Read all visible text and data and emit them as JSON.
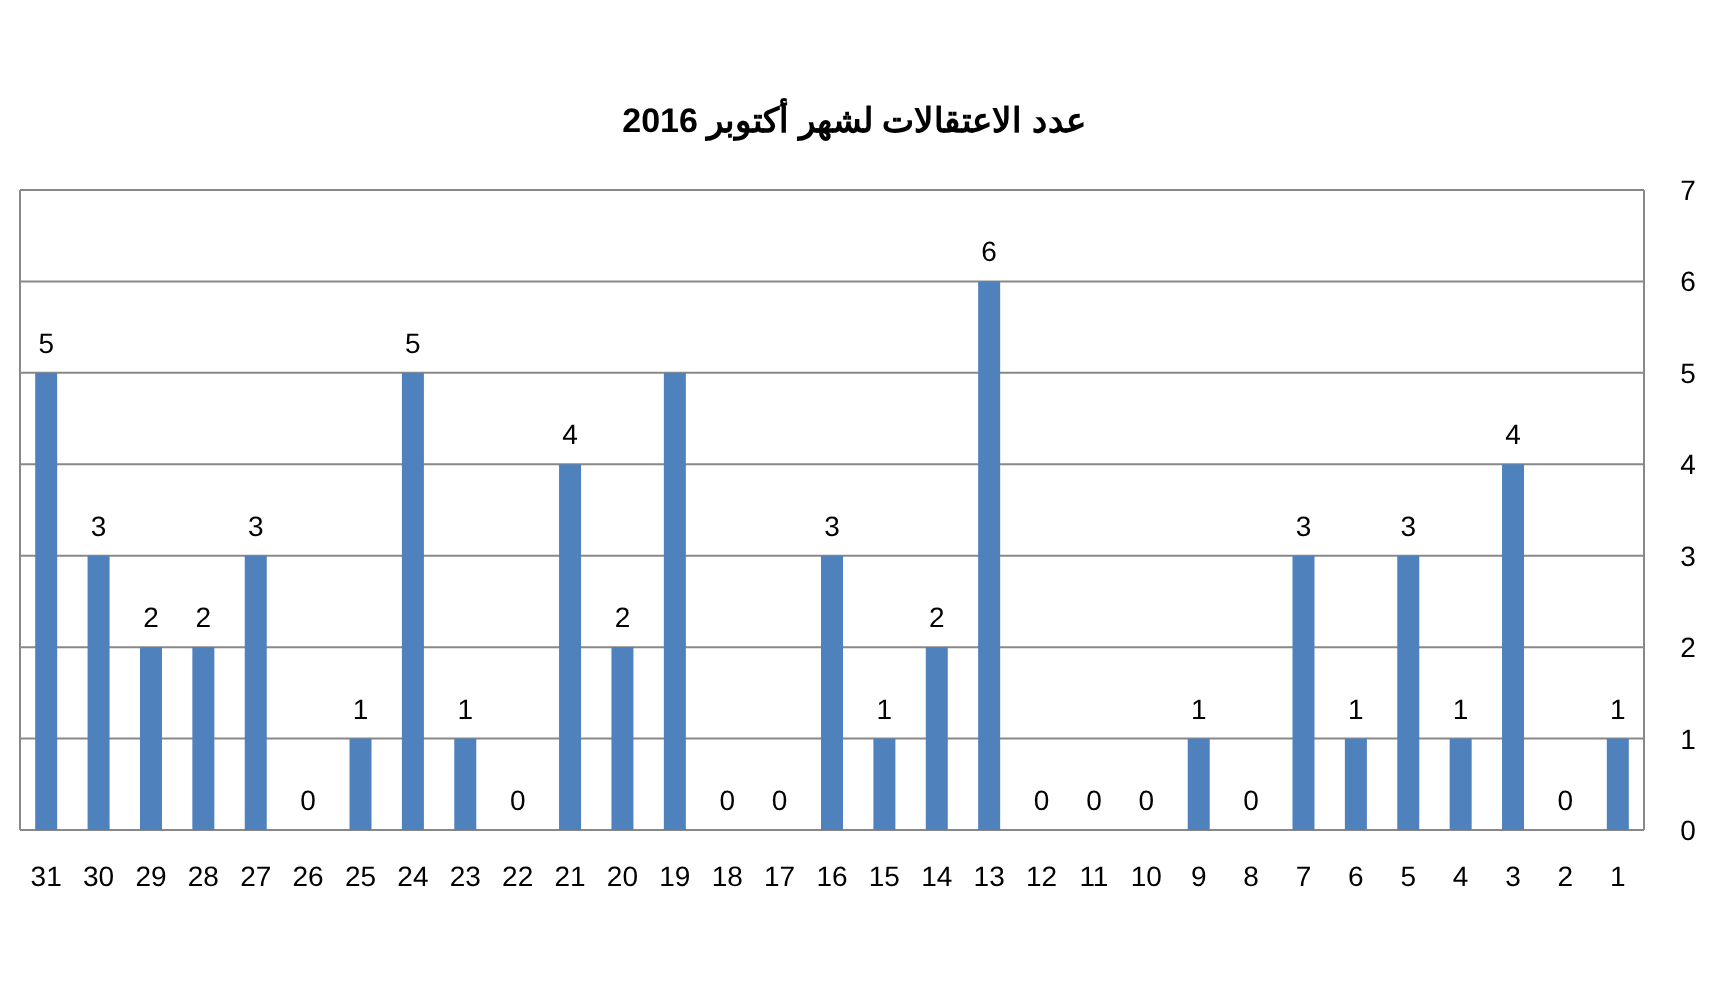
{
  "chart_data": {
    "type": "bar",
    "title": "عدد الاعتقالات لشهر أكتوبر 2016",
    "categories": [
      "31",
      "30",
      "29",
      "28",
      "27",
      "26",
      "25",
      "24",
      "23",
      "22",
      "21",
      "20",
      "19",
      "18",
      "17",
      "16",
      "15",
      "14",
      "13",
      "12",
      "11",
      "10",
      "9",
      "8",
      "7",
      "6",
      "5",
      "4",
      "3",
      "2",
      "1"
    ],
    "values": [
      5,
      3,
      2,
      2,
      3,
      0,
      1,
      5,
      1,
      0,
      4,
      2,
      5,
      0,
      0,
      3,
      1,
      2,
      6,
      0,
      0,
      0,
      1,
      0,
      3,
      1,
      3,
      1,
      4,
      0,
      1
    ],
    "value_labels": [
      "5",
      "3",
      "2",
      "2",
      "3",
      "0",
      "1",
      "5",
      "1",
      "0",
      "4",
      "2",
      null,
      "0",
      "0",
      "3",
      "1",
      "2",
      "6",
      "0",
      "0",
      "0",
      "1",
      "0",
      "3",
      "1",
      "3",
      "1",
      "4",
      "0",
      "1"
    ],
    "color": "#4f81bd",
    "ylim": [
      0,
      7
    ],
    "yticks": [
      0,
      1,
      2,
      3,
      4,
      5,
      6,
      7
    ],
    "grid": "y"
  }
}
